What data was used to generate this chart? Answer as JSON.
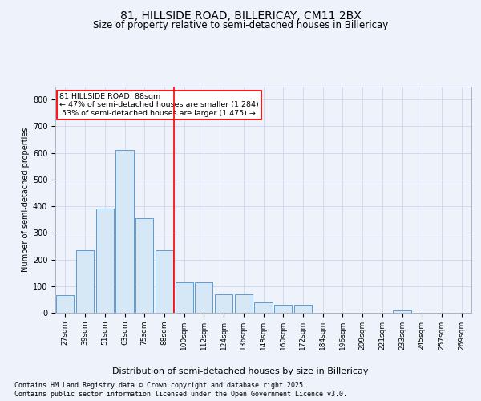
{
  "title1": "81, HILLSIDE ROAD, BILLERICAY, CM11 2BX",
  "title2": "Size of property relative to semi-detached houses in Billericay",
  "xlabel": "Distribution of semi-detached houses by size in Billericay",
  "ylabel": "Number of semi-detached properties",
  "categories": [
    "27sqm",
    "39sqm",
    "51sqm",
    "63sqm",
    "75sqm",
    "88sqm",
    "100sqm",
    "112sqm",
    "124sqm",
    "136sqm",
    "148sqm",
    "160sqm",
    "172sqm",
    "184sqm",
    "196sqm",
    "209sqm",
    "221sqm",
    "233sqm",
    "245sqm",
    "257sqm",
    "269sqm"
  ],
  "values": [
    65,
    235,
    390,
    610,
    355,
    235,
    115,
    115,
    70,
    70,
    40,
    30,
    30,
    0,
    0,
    0,
    0,
    10,
    0,
    0,
    0
  ],
  "bar_color": "#d6e8f5",
  "bar_edge_color": "#5b9bd5",
  "vline_index": 5,
  "pct_smaller": 47,
  "pct_larger": 53,
  "n_smaller": 1284,
  "n_larger": 1475,
  "annotation_title": "81 HILLSIDE ROAD: 88sqm",
  "ylim": [
    0,
    850
  ],
  "yticks": [
    0,
    100,
    200,
    300,
    400,
    500,
    600,
    700,
    800
  ],
  "footnote1": "Contains HM Land Registry data © Crown copyright and database right 2025.",
  "footnote2": "Contains public sector information licensed under the Open Government Licence v3.0.",
  "bg_color": "#eef2fb",
  "plot_bg": "#eef2fb",
  "grid_color": "#c8d0e8"
}
